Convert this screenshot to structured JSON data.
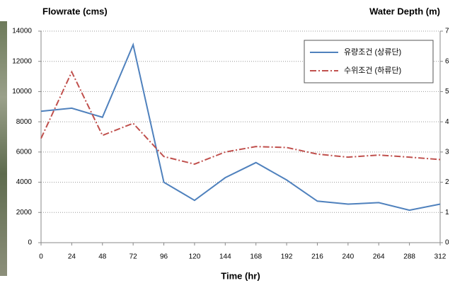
{
  "chart_data": {
    "type": "line",
    "y_label": "Flowrate (cms)",
    "y2_label": "Water Depth (m)",
    "x_label": "Time (hr)",
    "x": [
      0,
      24,
      48,
      72,
      96,
      120,
      144,
      168,
      192,
      216,
      240,
      264,
      288,
      312
    ],
    "xlim": [
      0,
      312
    ],
    "xticks": [
      0,
      24,
      48,
      72,
      96,
      120,
      144,
      168,
      192,
      216,
      240,
      264,
      288,
      312
    ],
    "ylim": [
      0,
      14000
    ],
    "yticks": [
      0,
      2000,
      4000,
      6000,
      8000,
      10000,
      12000,
      14000
    ],
    "y2lim": [
      0,
      7
    ],
    "y2ticks": [
      0,
      1,
      2,
      3,
      4,
      5,
      6,
      7
    ],
    "grid": true,
    "legend": "upper right",
    "series": [
      {
        "name": "유량조건 (상류단)",
        "color": "#4f81bd",
        "dash": "solid",
        "values": [
          8700,
          8900,
          8300,
          13100,
          4000,
          2800,
          4300,
          5300,
          4150,
          2750,
          2550,
          2650,
          2150,
          2550
        ]
      },
      {
        "name": "수위조건 (하류단)",
        "color": "#c0504d",
        "dash": "dashdot",
        "axis": "y2",
        "values": [
          3.45,
          5.65,
          3.55,
          3.95,
          2.85,
          2.6,
          3.0,
          3.18,
          3.15,
          2.93,
          2.83,
          2.9,
          2.83,
          2.75
        ]
      }
    ]
  }
}
